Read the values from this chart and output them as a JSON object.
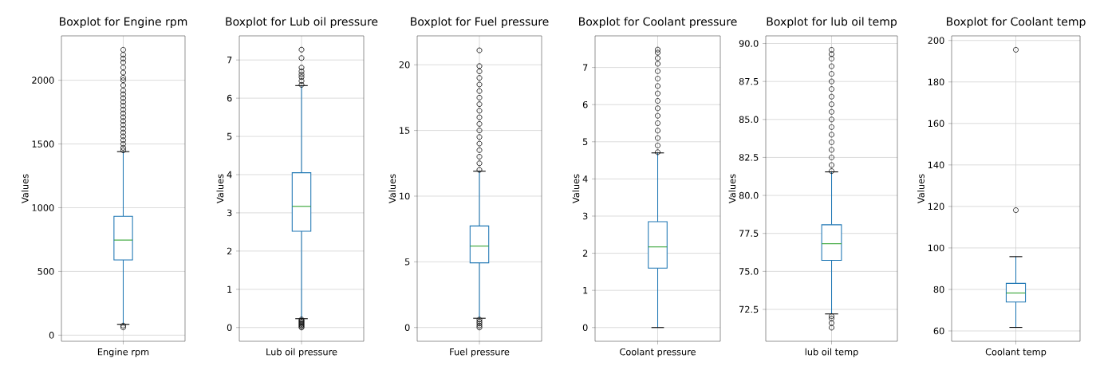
{
  "chart_data": [
    {
      "type": "box",
      "title": "Boxplot for Engine rpm",
      "ylabel": "Values",
      "categories": [
        "Engine rpm"
      ],
      "color": "#1f77b4",
      "grid": true,
      "marker": "circle",
      "ylim": [
        -48,
        2348
      ],
      "yticks": [
        0,
        500,
        1000,
        1500,
        2000
      ],
      "boxes": [
        {
          "low": 85,
          "q1": 590,
          "median": 746,
          "q3": 933,
          "high": 1440,
          "outliers": [
            61,
            75,
            1450,
            1470,
            1500,
            1530,
            1560,
            1590,
            1620,
            1650,
            1680,
            1710,
            1740,
            1770,
            1800,
            1830,
            1860,
            1890,
            1920,
            1960,
            2000,
            2020,
            2060,
            2100,
            2140,
            2170,
            2200,
            2239
          ]
        }
      ]
    },
    {
      "type": "box",
      "title": "Boxplot for Lub oil pressure",
      "ylabel": "Values",
      "categories": [
        "Lub oil pressure"
      ],
      "color": "#1f77b4",
      "grid": true,
      "marker": "circle",
      "ylim": [
        -0.36,
        7.63
      ],
      "yticks": [
        0,
        1,
        2,
        3,
        4,
        5,
        6,
        7
      ],
      "boxes": [
        {
          "low": 0.23,
          "q1": 2.52,
          "median": 3.17,
          "q3": 4.05,
          "high": 6.33,
          "outliers": [
            0.0,
            0.03,
            0.06,
            0.09,
            0.12,
            0.15,
            0.18,
            0.21,
            6.35,
            6.45,
            6.55,
            6.62,
            6.7,
            6.8,
            7.05,
            7.27
          ]
        }
      ]
    },
    {
      "type": "box",
      "title": "Boxplot for Fuel pressure",
      "ylabel": "Values",
      "categories": [
        "Fuel pressure"
      ],
      "color": "#1f77b4",
      "grid": true,
      "marker": "circle",
      "ylim": [
        -1.05,
        22.2
      ],
      "yticks": [
        0,
        5,
        10,
        15,
        20
      ],
      "boxes": [
        {
          "low": 0.7,
          "q1": 4.92,
          "median": 6.2,
          "q3": 7.73,
          "high": 11.9,
          "outliers": [
            0.0,
            0.15,
            0.3,
            0.45,
            0.6,
            12.0,
            12.5,
            13.0,
            13.5,
            14.0,
            14.5,
            15.0,
            15.5,
            16.0,
            16.5,
            17.0,
            17.5,
            18.0,
            18.5,
            19.0,
            19.5,
            19.9,
            21.1
          ]
        }
      ]
    },
    {
      "type": "box",
      "title": "Boxplot for Coolant pressure",
      "ylabel": "Values",
      "categories": [
        "Coolant pressure"
      ],
      "color": "#1f77b4",
      "grid": true,
      "marker": "circle",
      "ylim": [
        -0.37,
        7.85
      ],
      "yticks": [
        0,
        1,
        2,
        3,
        4,
        5,
        6,
        7
      ],
      "boxes": [
        {
          "low": 0.0,
          "q1": 1.6,
          "median": 2.17,
          "q3": 2.85,
          "high": 4.7,
          "outliers": [
            4.72,
            4.9,
            5.1,
            5.3,
            5.5,
            5.7,
            5.9,
            6.1,
            6.3,
            6.5,
            6.7,
            6.9,
            7.1,
            7.25,
            7.4,
            7.48
          ]
        }
      ]
    },
    {
      "type": "box",
      "title": "Boxplot for lub oil temp",
      "ylabel": "Values",
      "categories": [
        "lub oil temp"
      ],
      "color": "#1f77b4",
      "grid": true,
      "marker": "circle",
      "ylim": [
        70.4,
        90.5
      ],
      "yticks": [
        {
          "value": 72.5,
          "label": "72.5"
        },
        {
          "value": 75,
          "label": "75.0"
        },
        {
          "value": 77.5,
          "label": "77.5"
        },
        {
          "value": 80,
          "label": "80.0"
        },
        {
          "value": 82.5,
          "label": "82.5"
        },
        {
          "value": 85,
          "label": "85.0"
        },
        {
          "value": 87.5,
          "label": "87.5"
        },
        {
          "value": 90,
          "label": "90.0"
        }
      ],
      "boxes": [
        {
          "low": 72.2,
          "q1": 75.73,
          "median": 76.82,
          "q3": 78.07,
          "high": 81.55,
          "outliers": [
            71.3,
            71.6,
            71.9,
            72.05,
            81.6,
            82.0,
            82.5,
            83.0,
            83.5,
            84.0,
            84.5,
            85.0,
            85.5,
            86.0,
            86.5,
            87.0,
            87.5,
            88.0,
            88.5,
            89.0,
            89.3,
            89.58
          ]
        }
      ]
    },
    {
      "type": "box",
      "title": "Boxplot for Coolant temp",
      "ylabel": "Values",
      "categories": [
        "Coolant temp"
      ],
      "color": "#1f77b4",
      "grid": true,
      "marker": "circle",
      "ylim": [
        55,
        202.2
      ],
      "yticks": [
        60,
        80,
        100,
        120,
        140,
        160,
        180,
        200
      ],
      "boxes": [
        {
          "low": 61.7,
          "q1": 73.9,
          "median": 78.3,
          "q3": 82.9,
          "high": 95.8,
          "outliers": [
            118.2,
            195.5
          ]
        }
      ]
    }
  ]
}
